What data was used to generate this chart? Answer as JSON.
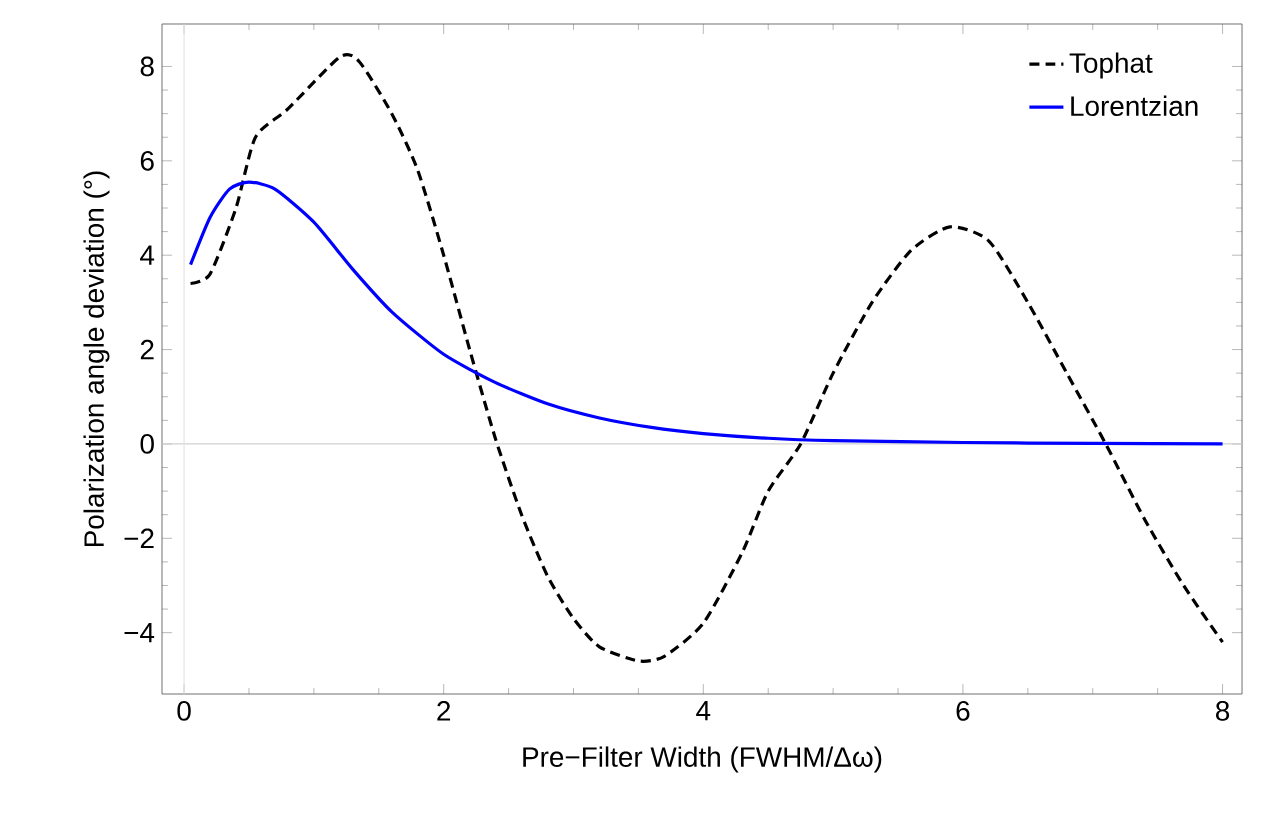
{
  "chart_data": {
    "type": "line",
    "xlabel": "Pre−Filter Width (FWHM/Δω)",
    "ylabel": "Polarization angle deviation (°)",
    "xlim": [
      -0.17,
      8.15
    ],
    "ylim": [
      -5.3,
      8.9
    ],
    "xticks": [
      0,
      2,
      4,
      6,
      8
    ],
    "yticks": [
      {
        "value": -4,
        "label": "−4"
      },
      {
        "value": -2,
        "label": "−2"
      },
      0,
      2,
      4,
      6,
      8
    ],
    "legend": "top right",
    "grid": false,
    "ref_lines": [
      {
        "axis": "y",
        "value": 0,
        "color": "#d0d0d0"
      },
      {
        "axis": "x",
        "value": 0,
        "color": "#e4e4e4"
      }
    ],
    "series": [
      {
        "name": "Tophat",
        "color": "#000000",
        "line_style": "dashed",
        "x": [
          0.05,
          0.2,
          0.4,
          0.55,
          0.8,
          1.2,
          1.35,
          1.6,
          1.8,
          2.0,
          2.2,
          2.4,
          2.6,
          2.8,
          3.0,
          3.2,
          3.5,
          3.7,
          4.0,
          4.3,
          4.5,
          4.75,
          5.0,
          5.3,
          5.6,
          5.9,
          6.2,
          6.5,
          6.8,
          7.1,
          7.4,
          7.7,
          8.0
        ],
        "values": [
          3.4,
          3.6,
          5.0,
          6.5,
          7.1,
          8.2,
          8.1,
          7.0,
          5.8,
          4.0,
          2.0,
          0.1,
          -1.5,
          -2.8,
          -3.7,
          -4.3,
          -4.6,
          -4.5,
          -3.8,
          -2.3,
          -1.0,
          0,
          1.5,
          3.0,
          4.1,
          4.6,
          4.3,
          3.0,
          1.5,
          0,
          -1.6,
          -3.0,
          -4.2
        ]
      },
      {
        "name": "Lorentzian",
        "color": "#0000ff",
        "line_style": "solid",
        "x": [
          0.05,
          0.2,
          0.35,
          0.5,
          0.7,
          1.0,
          1.3,
          1.6,
          2.0,
          2.4,
          2.8,
          3.2,
          3.6,
          4.0,
          4.5,
          5.0,
          6.0,
          7.0,
          8.0
        ],
        "values": [
          3.8,
          4.8,
          5.4,
          5.55,
          5.4,
          4.7,
          3.7,
          2.8,
          1.9,
          1.3,
          0.85,
          0.55,
          0.35,
          0.22,
          0.12,
          0.07,
          0.03,
          0.01,
          0
        ]
      }
    ]
  }
}
